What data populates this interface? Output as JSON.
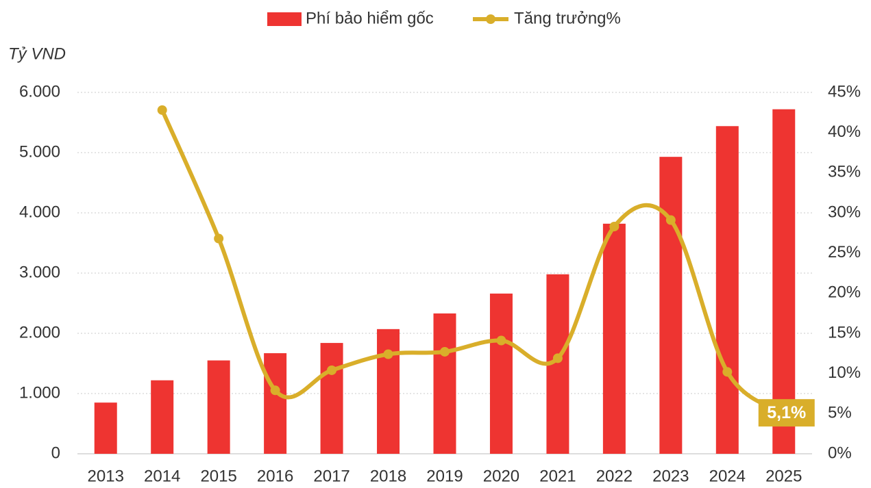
{
  "chart_data": {
    "type": "bar-line",
    "y_label": "Tỷ VND",
    "categories": [
      "2013",
      "2014",
      "2015",
      "2016",
      "2017",
      "2018",
      "2019",
      "2020",
      "2021",
      "2022",
      "2023",
      "2024",
      "2025"
    ],
    "series": [
      {
        "name": "Phí bảo hiểm gốc",
        "type": "bar",
        "color": "#ee3431",
        "values": [
          850,
          1220,
          1550,
          1670,
          1840,
          2070,
          2330,
          2660,
          2980,
          3820,
          4930,
          5440,
          5720
        ]
      },
      {
        "name": "Tăng trưởng%",
        "type": "line",
        "axis": "y2",
        "color": "#d9ae2a",
        "smooth": true,
        "values": [
          null,
          42.8,
          26.8,
          7.9,
          10.4,
          12.4,
          12.7,
          14.1,
          11.9,
          28.3,
          29.1,
          10.2,
          5.1
        ],
        "value_labels": [
          null,
          null,
          null,
          null,
          null,
          null,
          null,
          null,
          null,
          null,
          null,
          null,
          "5,1%"
        ]
      }
    ],
    "ylim": [
      0,
      6000
    ],
    "yticks": [
      {
        "value": 0,
        "label": "0"
      },
      {
        "value": 1000,
        "label": "1.000"
      },
      {
        "value": 2000,
        "label": "2.000"
      },
      {
        "value": 3000,
        "label": "3.000"
      },
      {
        "value": 4000,
        "label": "4.000"
      },
      {
        "value": 5000,
        "label": "5.000"
      },
      {
        "value": 6000,
        "label": "6.000"
      }
    ],
    "y2lim": [
      0,
      45
    ],
    "y2ticks": [
      {
        "value": 0,
        "label": "0%"
      },
      {
        "value": 5,
        "label": "5%"
      },
      {
        "value": 10,
        "label": "10%"
      },
      {
        "value": 15,
        "label": "15%"
      },
      {
        "value": 20,
        "label": "20%"
      },
      {
        "value": 25,
        "label": "25%"
      },
      {
        "value": 30,
        "label": "30%"
      },
      {
        "value": 35,
        "label": "35%"
      },
      {
        "value": 40,
        "label": "40%"
      },
      {
        "value": 45,
        "label": "45%"
      }
    ],
    "grid": true,
    "legend": "top"
  }
}
